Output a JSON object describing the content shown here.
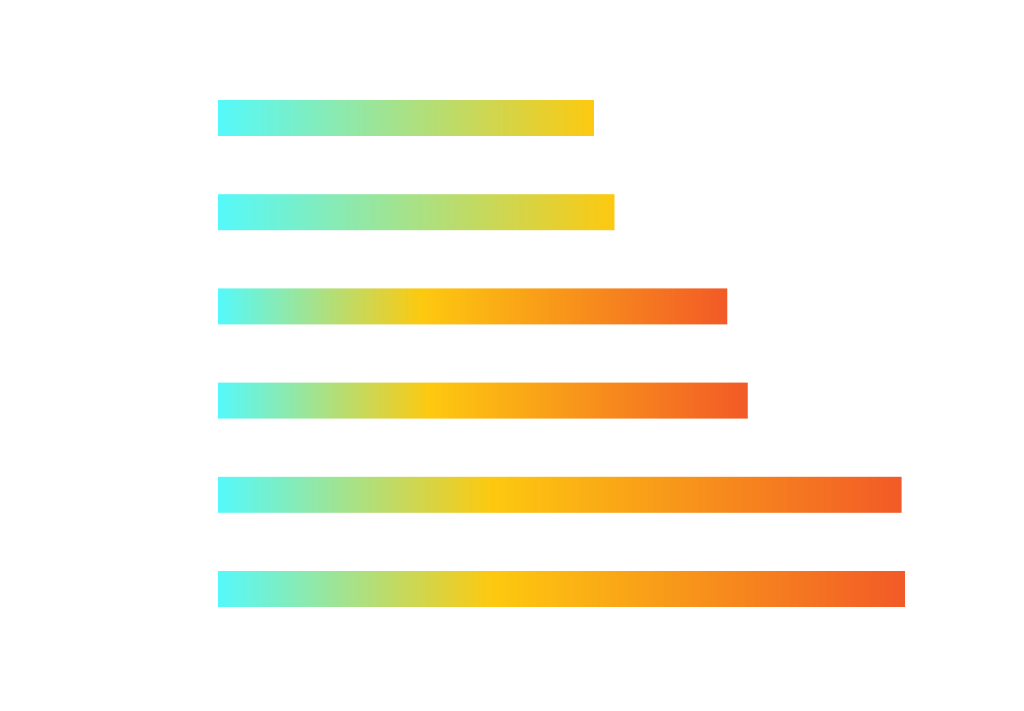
{
  "chart_data": {
    "type": "bar",
    "orientation": "horizontal",
    "title": "",
    "xlabel": "",
    "ylabel": "",
    "grid": false,
    "legend": "none",
    "categories": [
      "",
      "",
      "",
      "",
      "",
      ""
    ],
    "series": [
      {
        "values": [
          55,
          58,
          74.5,
          77.5,
          100,
          100.5
        ]
      }
    ],
    "xlim": [
      0,
      100.5
    ],
    "colors": {
      "gradient_start": "#55f9fb",
      "gradient_mid": "#fdc90f",
      "gradient_end": "#f25a27",
      "background": "#ffffff"
    }
  }
}
